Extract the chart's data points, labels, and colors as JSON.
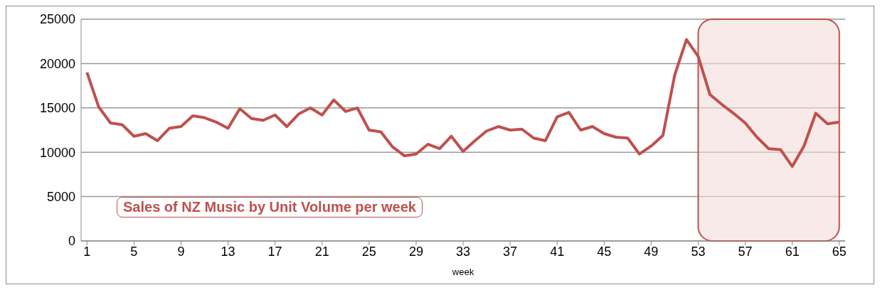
{
  "chart_data": {
    "type": "line",
    "xlabel": "week",
    "x": [
      1,
      2,
      3,
      4,
      5,
      6,
      7,
      8,
      9,
      10,
      11,
      12,
      13,
      14,
      15,
      16,
      17,
      18,
      19,
      20,
      21,
      22,
      23,
      24,
      25,
      26,
      27,
      28,
      29,
      30,
      31,
      32,
      33,
      34,
      35,
      36,
      37,
      38,
      39,
      40,
      41,
      42,
      43,
      44,
      45,
      46,
      47,
      48,
      49,
      50,
      51,
      52,
      53,
      54,
      55,
      56,
      57,
      58,
      59,
      60,
      61,
      62,
      63,
      64,
      65
    ],
    "series": [
      {
        "color": "#c0504d",
        "values": [
          19000,
          15100,
          13300,
          13100,
          11800,
          12100,
          11300,
          12700,
          12900,
          14100,
          13900,
          13400,
          12700,
          14900,
          13800,
          13600,
          14200,
          12900,
          14300,
          15000,
          14200,
          15900,
          14600,
          15000,
          12500,
          12300,
          10600,
          9600,
          9800,
          10900,
          10400,
          11800,
          10100,
          11300,
          12400,
          12900,
          12500,
          12600,
          11600,
          11300,
          14000,
          14500,
          12500,
          12900,
          12100,
          11700,
          11600,
          9800,
          10700,
          11900,
          18700,
          22700,
          20800,
          16500,
          15400,
          14400,
          13300,
          11700,
          10400,
          10300,
          8400,
          10700,
          14400,
          13200,
          13400
        ]
      }
    ],
    "xlim": [
      0.5,
      65.5
    ],
    "xticks": [
      1,
      5,
      9,
      13,
      17,
      21,
      25,
      29,
      33,
      37,
      41,
      45,
      49,
      53,
      57,
      61,
      65
    ],
    "ylim": [
      0,
      25000
    ],
    "yticks": [
      0,
      5000,
      10000,
      15000,
      20000,
      25000
    ],
    "grid": "y",
    "marker": "none",
    "line_style": "solid",
    "bands": [
      {
        "axis": "x",
        "from": 53,
        "to": 65,
        "color": "#f2dcdb"
      }
    ],
    "annotations": [
      "Sales of NZ Music by Unit Volume per week"
    ]
  }
}
